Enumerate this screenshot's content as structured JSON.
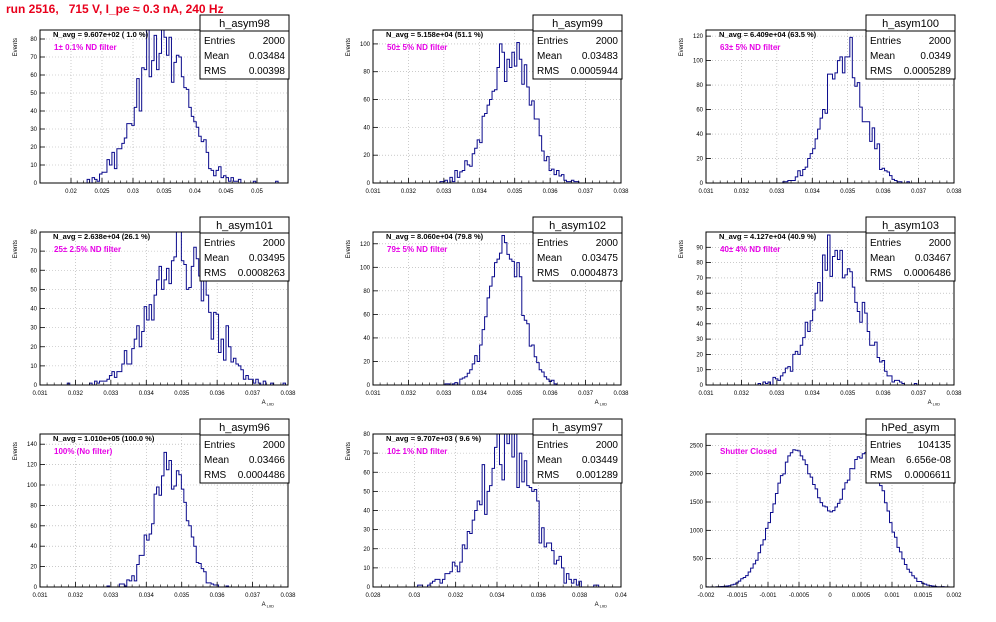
{
  "page": {
    "title": "run 2516,   715 V, I_pe ≈ 0.3 nA, 240 Hz"
  },
  "colors": {
    "histogram": "#0a0a8c",
    "annotation": "#e600e6",
    "title": "#e8001c"
  },
  "chart_data": [
    {
      "type": "bar",
      "name": "h_asym98",
      "stats": {
        "entries": "2000",
        "mean": "0.03484",
        "rms": "0.00398"
      },
      "navg": "N_avg = 9.607e+02 ( 1.0 %)",
      "filter_label": "1± 0.1% ND filter",
      "ylabel": "Events",
      "xlabel": "",
      "xlim": [
        0.015,
        0.055
      ],
      "ylim": [
        0,
        85
      ],
      "yticks": [
        0,
        10,
        20,
        30,
        40,
        50,
        60,
        70,
        80
      ],
      "xticks": [
        0.02,
        0.025,
        0.03,
        0.035,
        0.04,
        0.045,
        0.05
      ],
      "xtick_labels": [
        "0.02",
        "0.025",
        "0.03",
        "0.035",
        "0.04",
        "0.045",
        "0.05"
      ],
      "dist": {
        "type": "gauss",
        "mean": 0.03484,
        "sigma": 0.00398,
        "entries": 2000,
        "bins": 100,
        "seed": 11
      }
    },
    {
      "type": "bar",
      "name": "h_asym99",
      "stats": {
        "entries": "2000",
        "mean": "0.03483",
        "rms": "0.0005944"
      },
      "navg": "N_avg = 5.158e+04 (51.1 %)",
      "filter_label": "50± 5% ND filter",
      "ylabel": "Events",
      "xlabel": "",
      "xlim": [
        0.031,
        0.038
      ],
      "ylim": [
        0,
        110
      ],
      "yticks": [
        0,
        20,
        40,
        60,
        80,
        100
      ],
      "xticks": [
        0.031,
        0.032,
        0.033,
        0.034,
        0.035,
        0.036,
        0.037,
        0.038
      ],
      "xtick_labels": [
        "0.031",
        "0.032",
        "0.033",
        "0.034",
        "0.035",
        "0.036",
        "0.037",
        "0.038"
      ],
      "dist": {
        "type": "gauss",
        "mean": 0.03483,
        "sigma": 0.0005944,
        "entries": 2000,
        "bins": 100,
        "seed": 23
      }
    },
    {
      "type": "bar",
      "name": "h_asym100",
      "stats": {
        "entries": "2000",
        "mean": "0.0349",
        "rms": "0.0005289"
      },
      "navg": "N_avg = 6.409e+04 (63.5 %)",
      "filter_label": "63± 5% ND filter",
      "ylabel": "Events",
      "xlabel": "",
      "xlim": [
        0.031,
        0.038
      ],
      "ylim": [
        0,
        125
      ],
      "yticks": [
        0,
        20,
        40,
        60,
        80,
        100,
        120
      ],
      "xticks": [
        0.031,
        0.032,
        0.033,
        0.034,
        0.035,
        0.036,
        0.037,
        0.038
      ],
      "xtick_labels": [
        "0.031",
        "0.032",
        "0.033",
        "0.034",
        "0.035",
        "0.036",
        "0.037",
        "0.038"
      ],
      "dist": {
        "type": "gauss",
        "mean": 0.0349,
        "sigma": 0.0005289,
        "entries": 2000,
        "bins": 100,
        "seed": 37
      }
    },
    {
      "type": "bar",
      "name": "h_asym101",
      "stats": {
        "entries": "2000",
        "mean": "0.03495",
        "rms": "0.0008263"
      },
      "navg": "N_avg = 2.638e+04 (26.1 %)",
      "filter_label": "25± 2.5% ND filter",
      "ylabel": "Events",
      "xlabel": "A",
      "xlim": [
        0.031,
        0.038
      ],
      "ylim": [
        0,
        80
      ],
      "yticks": [
        0,
        10,
        20,
        30,
        40,
        50,
        60,
        70,
        80
      ],
      "xticks": [
        0.031,
        0.032,
        0.033,
        0.034,
        0.035,
        0.036,
        0.037,
        0.038
      ],
      "xtick_labels": [
        "0.031",
        "0.032",
        "0.033",
        "0.034",
        "0.035",
        "0.036",
        "0.037",
        "0.038"
      ],
      "dist": {
        "type": "gauss",
        "mean": 0.03495,
        "sigma": 0.0008263,
        "entries": 2000,
        "bins": 100,
        "seed": 41
      }
    },
    {
      "type": "bar",
      "name": "h_asym102",
      "stats": {
        "entries": "2000",
        "mean": "0.03475",
        "rms": "0.0004873"
      },
      "navg": "N_avg = 8.060e+04 (79.8 %)",
      "filter_label": "79± 5% ND filter",
      "ylabel": "Events",
      "xlabel": "A",
      "xlim": [
        0.031,
        0.038
      ],
      "ylim": [
        0,
        130
      ],
      "yticks": [
        0,
        20,
        40,
        60,
        80,
        100,
        120
      ],
      "xticks": [
        0.031,
        0.032,
        0.033,
        0.034,
        0.035,
        0.036,
        0.037,
        0.038
      ],
      "xtick_labels": [
        "0.031",
        "0.032",
        "0.033",
        "0.034",
        "0.035",
        "0.036",
        "0.037",
        "0.038"
      ],
      "dist": {
        "type": "gauss",
        "mean": 0.03475,
        "sigma": 0.0004873,
        "entries": 2000,
        "bins": 100,
        "seed": 53
      }
    },
    {
      "type": "bar",
      "name": "h_asym103",
      "stats": {
        "entries": "2000",
        "mean": "0.03467",
        "rms": "0.0006486"
      },
      "navg": "N_avg = 4.127e+04 (40.9 %)",
      "filter_label": "40± 4% ND filter",
      "ylabel": "Events",
      "xlabel": "A",
      "xlim": [
        0.031,
        0.038
      ],
      "ylim": [
        0,
        100
      ],
      "yticks": [
        0,
        10,
        20,
        30,
        40,
        50,
        60,
        70,
        80,
        90
      ],
      "xticks": [
        0.031,
        0.032,
        0.033,
        0.034,
        0.035,
        0.036,
        0.037,
        0.038
      ],
      "xtick_labels": [
        "0.031",
        "0.032",
        "0.033",
        "0.034",
        "0.035",
        "0.036",
        "0.037",
        "0.038"
      ],
      "dist": {
        "type": "gauss",
        "mean": 0.03467,
        "sigma": 0.0006486,
        "entries": 2000,
        "bins": 100,
        "seed": 67
      }
    },
    {
      "type": "bar",
      "name": "h_asym96",
      "stats": {
        "entries": "2000",
        "mean": "0.03466",
        "rms": "0.0004486"
      },
      "navg": "N_avg = 1.010e+05 (100.0 %)",
      "filter_label": "100% (No filter)",
      "ylabel": "Events",
      "xlabel": "A",
      "xlim": [
        0.031,
        0.038
      ],
      "ylim": [
        0,
        150
      ],
      "yticks": [
        0,
        20,
        40,
        60,
        80,
        100,
        120,
        140
      ],
      "xticks": [
        0.031,
        0.032,
        0.033,
        0.034,
        0.035,
        0.036,
        0.037,
        0.038
      ],
      "xtick_labels": [
        "0.031",
        "0.032",
        "0.033",
        "0.034",
        "0.035",
        "0.036",
        "0.037",
        "0.038"
      ],
      "dist": {
        "type": "gauss",
        "mean": 0.03466,
        "sigma": 0.0004486,
        "entries": 2000,
        "bins": 100,
        "seed": 79
      }
    },
    {
      "type": "bar",
      "name": "h_asym97",
      "stats": {
        "entries": "2000",
        "mean": "0.03449",
        "rms": "0.001289"
      },
      "navg": "N_avg = 9.707e+03 ( 9.6 %)",
      "filter_label": "10± 1% ND filter",
      "ylabel": "Events",
      "xlabel": "A",
      "xlim": [
        0.028,
        0.04
      ],
      "ylim": [
        0,
        80
      ],
      "yticks": [
        0,
        10,
        20,
        30,
        40,
        50,
        60,
        70,
        80
      ],
      "xticks": [
        0.028,
        0.03,
        0.032,
        0.034,
        0.036,
        0.038,
        0.04
      ],
      "xtick_labels": [
        "0.028",
        "0.03",
        "0.032",
        "0.034",
        "0.036",
        "0.038",
        "0.04"
      ],
      "dist": {
        "type": "gauss",
        "mean": 0.03449,
        "sigma": 0.001289,
        "entries": 2000,
        "bins": 100,
        "seed": 83
      }
    },
    {
      "type": "bar",
      "name": "hPed_asym",
      "stats": {
        "entries": "104135",
        "mean": "6.656e-08",
        "rms": "0.0006611"
      },
      "navg": "",
      "filter_label": "Shutter Closed",
      "ylabel": "",
      "xlabel": "",
      "xlim": [
        -0.002,
        0.002
      ],
      "ylim": [
        0,
        2700
      ],
      "yticks": [
        0,
        500,
        1000,
        1500,
        2000,
        2500
      ],
      "xticks": [
        -0.002,
        -0.0015,
        -0.001,
        -0.0005,
        0,
        0.0005,
        0.001,
        0.0015,
        0.002
      ],
      "xtick_labels": [
        "-0.002",
        "-0.0015",
        "-0.001",
        "-0.0005",
        "0",
        "0.0005",
        "0.001",
        "0.0015",
        "0.002"
      ],
      "dist": {
        "type": "double",
        "mean": 6.656e-08,
        "sigma": 0.0006611,
        "offset": 0.00056,
        "width": 0.00035,
        "entries": 104135,
        "bins": 100,
        "seed": 97
      }
    }
  ]
}
